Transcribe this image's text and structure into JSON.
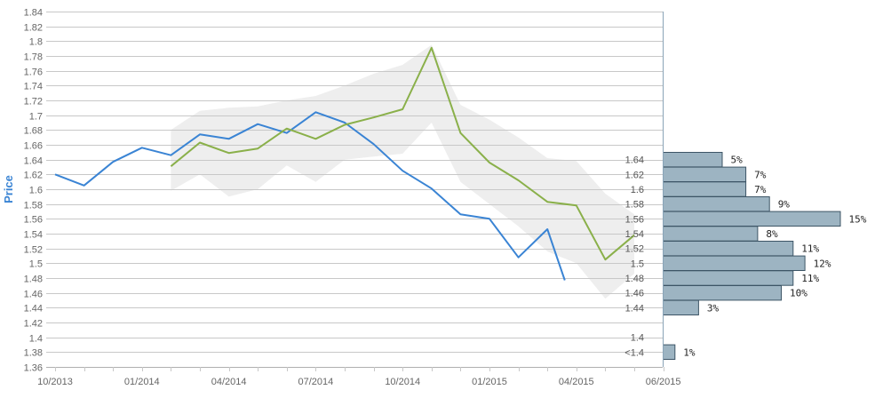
{
  "chart_data": {
    "type": "line",
    "ylabel": "Price",
    "ylim": [
      1.36,
      1.84
    ],
    "y_ticks": [
      "1.84",
      "1.82",
      "1.8",
      "1.78",
      "1.76",
      "1.74",
      "1.72",
      "1.7",
      "1.68",
      "1.66",
      "1.64",
      "1.62",
      "1.6",
      "1.58",
      "1.56",
      "1.54",
      "1.52",
      "1.5",
      "1.48",
      "1.46",
      "1.44",
      "1.42",
      "1.4",
      "1.38",
      "1.36"
    ],
    "x_ticks": [
      "10/2013",
      "01/2014",
      "04/2014",
      "07/2014",
      "10/2014",
      "01/2015",
      "04/2015",
      "06/2015"
    ],
    "x_tick_months": [
      0,
      3,
      6,
      9,
      12,
      15,
      18,
      21
    ],
    "series": [
      {
        "color": "#3a84d4",
        "x_months": [
          0,
          1,
          2,
          3,
          4,
          5,
          6,
          7,
          8,
          9,
          10,
          11,
          12,
          13,
          14,
          15,
          16,
          17,
          17.6
        ],
        "values": [
          1.62,
          1.605,
          1.637,
          1.656,
          1.646,
          1.674,
          1.668,
          1.688,
          1.676,
          1.704,
          1.69,
          1.661,
          1.625,
          1.601,
          1.566,
          1.56,
          1.508,
          1.546,
          1.477
        ]
      },
      {
        "color": "#8ab04a",
        "x_months": [
          4,
          5,
          6,
          7,
          8,
          9,
          10,
          11,
          12,
          13,
          14,
          15,
          16,
          17,
          18,
          19,
          20
        ],
        "values": [
          1.631,
          1.663,
          1.649,
          1.655,
          1.682,
          1.668,
          1.687,
          1.697,
          1.708,
          1.791,
          1.676,
          1.636,
          1.612,
          1.583,
          1.578,
          1.505,
          1.538
        ]
      }
    ],
    "forecast_band": {
      "color": "#eeeeee",
      "x_months": [
        4,
        5,
        6,
        7,
        8,
        9,
        10,
        11,
        12,
        13,
        14,
        15,
        16,
        17,
        18,
        19,
        20
      ],
      "upper": [
        1.68,
        1.706,
        1.71,
        1.712,
        1.72,
        1.726,
        1.74,
        1.756,
        1.768,
        1.795,
        1.714,
        1.694,
        1.67,
        1.642,
        1.638,
        1.594,
        1.566
      ],
      "lower": [
        1.598,
        1.62,
        1.59,
        1.6,
        1.632,
        1.61,
        1.64,
        1.644,
        1.648,
        1.69,
        1.61,
        1.58,
        1.55,
        1.516,
        1.5,
        1.452,
        1.486
      ]
    },
    "distribution": {
      "color": "#9db4c2",
      "bins": [
        "1.64",
        "1.62",
        "1.6",
        "1.58",
        "1.56",
        "1.54",
        "1.52",
        "1.5",
        "1.48",
        "1.46",
        "1.44",
        "1.4",
        "<1.4"
      ],
      "bin_values": [
        1.64,
        1.62,
        1.6,
        1.58,
        1.56,
        1.54,
        1.52,
        1.5,
        1.48,
        1.46,
        1.44,
        1.4,
        1.38
      ],
      "percent": [
        5,
        7,
        7,
        9,
        15,
        8,
        11,
        12,
        11,
        10,
        3,
        null,
        1
      ],
      "percent_labels": [
        "5%",
        "7%",
        "7%",
        "9%",
        "15%",
        "8%",
        "11%",
        "12%",
        "11%",
        "10%",
        "3%",
        "",
        "1%"
      ]
    }
  }
}
